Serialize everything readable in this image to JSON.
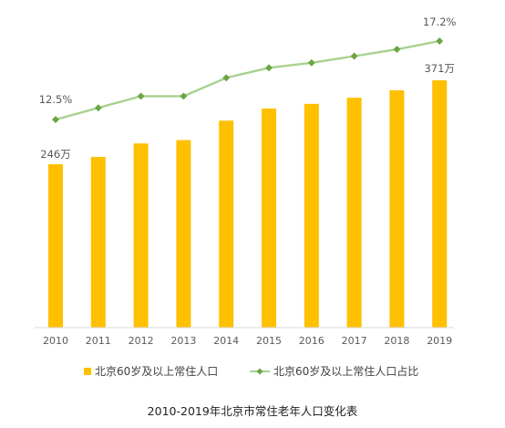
{
  "chart_data": {
    "type": "bar+line",
    "categories": [
      "2010",
      "2011",
      "2012",
      "2013",
      "2014",
      "2015",
      "2016",
      "2017",
      "2018",
      "2019"
    ],
    "series": [
      {
        "name": "北京60岁及以上常住人口",
        "type": "bar",
        "unit": "万",
        "values": [
          246,
          257,
          277,
          282,
          311,
          329,
          336,
          345,
          356,
          371
        ],
        "color": "#FFC000"
      },
      {
        "name": "北京60岁及以上常住人口占比",
        "type": "line",
        "unit": "%",
        "values": [
          12.5,
          13.2,
          13.9,
          13.9,
          15.0,
          15.6,
          15.9,
          16.3,
          16.7,
          17.2
        ],
        "color": "#6BA544",
        "line_color": "#A9D18E"
      }
    ],
    "data_labels": {
      "first_bar": "246万",
      "last_bar": "371万",
      "first_line": "12.5%",
      "last_line": "17.2%"
    },
    "legend": [
      "北京60岁及以上常住人口",
      "北京60岁及以上常住人口占比"
    ],
    "legend_position": "bottom",
    "grid": false,
    "caption": "2010-2019年北京市常住老年人口变化表"
  }
}
